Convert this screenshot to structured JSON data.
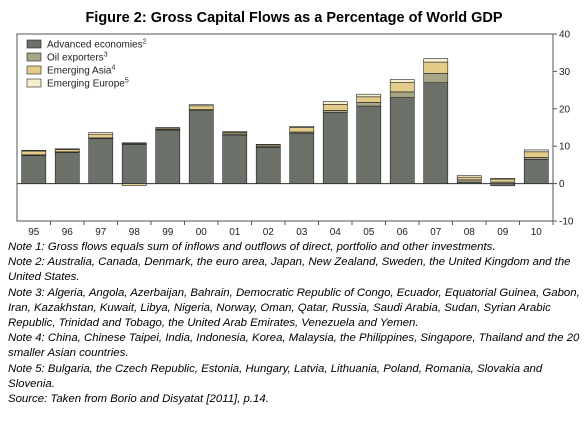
{
  "figure": {
    "title": "Figure 2: Gross Capital Flows as a Percentage of World GDP"
  },
  "chart_data": {
    "type": "bar",
    "stacked": true,
    "categories": [
      "95",
      "96",
      "97",
      "98",
      "99",
      "00",
      "01",
      "02",
      "03",
      "04",
      "05",
      "06",
      "07",
      "08",
      "09",
      "10"
    ],
    "series": [
      {
        "name": "Advanced economies",
        "superscript": "2",
        "color": "#6b7068",
        "values": [
          7.5,
          8.3,
          12.0,
          10.5,
          14.3,
          19.5,
          13.0,
          9.7,
          13.5,
          19.0,
          20.7,
          23.0,
          27.0,
          0.4,
          -0.6,
          6.5
        ]
      },
      {
        "name": "Oil exporters",
        "superscript": "3",
        "color": "#a8a487",
        "values": [
          0.2,
          0.2,
          0.2,
          0.2,
          0.2,
          0.3,
          0.3,
          0.2,
          0.3,
          0.6,
          1.0,
          1.5,
          2.5,
          0.6,
          0.4,
          0.5
        ]
      },
      {
        "name": "Emerging Asia",
        "superscript": "4",
        "color": "#e3cc8a",
        "values": [
          1.0,
          0.6,
          1.0,
          -0.5,
          0.3,
          1.0,
          0.4,
          0.4,
          1.2,
          1.6,
          1.5,
          2.5,
          3.0,
          0.7,
          0.8,
          1.5
        ]
      },
      {
        "name": "Emerging Europe",
        "superscript": "5",
        "color": "#f6efcf",
        "values": [
          0.2,
          0.2,
          0.4,
          0.2,
          0.2,
          0.3,
          0.2,
          0.2,
          0.3,
          0.7,
          0.7,
          0.8,
          0.9,
          0.4,
          0.2,
          0.5
        ]
      }
    ],
    "ylim": [
      -10,
      40
    ],
    "yticks": [
      -10,
      0,
      10,
      20,
      30,
      40
    ],
    "grid": false,
    "legend_position": "top-left",
    "axis_side": "right"
  },
  "notes": [
    "Note 1: Gross flows equals sum of inflows and outflows of direct, portfolio and other investments.",
    "Note 2: Australia, Canada, Denmark, the euro area, Japan, New Zealand, Sweden, the United Kingdom and the United States.",
    "Note 3: Algeria, Angola, Azerbaijan, Bahrain, Democratic Republic of Congo, Ecuador, Equatorial Guinea, Gabon, Iran, Kazakhstan, Kuwait, Libya, Nigeria, Norway, Oman, Qatar, Russia, Saudi Arabia, Sudan, Syrian Arabic Republic, Trinidad and Tobago, the United Arab Emirates, Venezuela and Yemen.",
    "Note 4: China, Chinese Taipei, India, Indonesia, Korea, Malaysia, the Philippines, Singapore, Thailand and the 20 smaller Asian countries.",
    "Note 5: Bulgaria, the Czech Republic, Estonia, Hungary, Latvia, Lithuania, Poland, Romania, Slovakia and Slovenia.",
    "Source: Taken from Borio and Disyatat [2011], p.14."
  ]
}
